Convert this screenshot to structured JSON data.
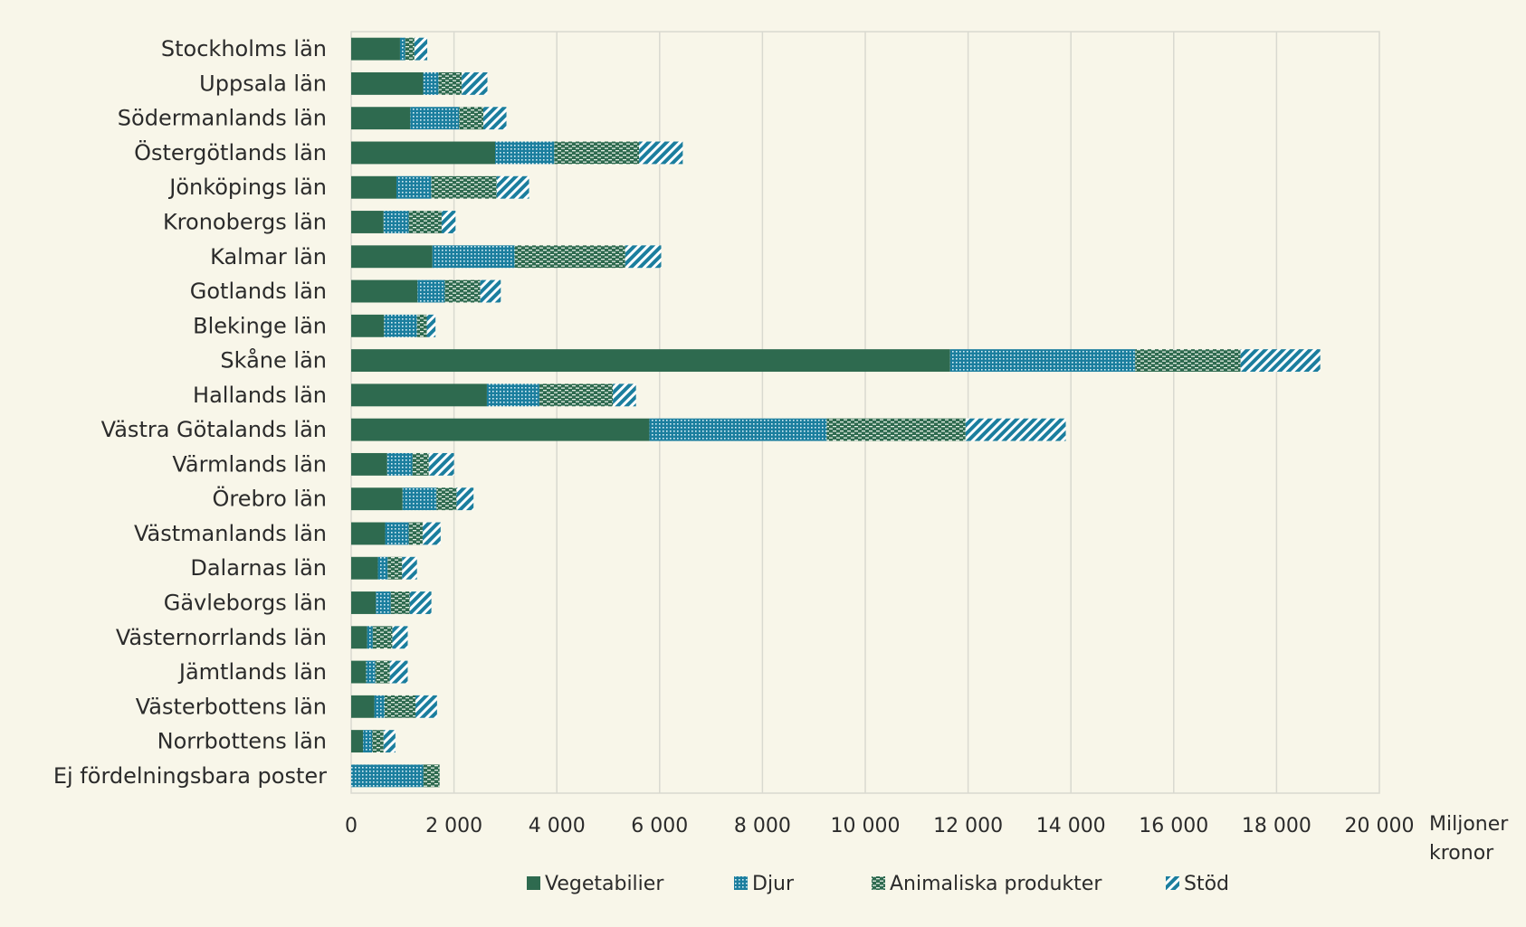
{
  "chart_data": {
    "type": "bar",
    "orientation": "horizontal",
    "stacked": true,
    "categories": [
      "Stockholms län",
      "Uppsala län",
      "Södermanlands län",
      "Östergötlands län",
      "Jönköpings län",
      "Kronobergs län",
      "Kalmar län",
      "Gotlands län",
      "Blekinge län",
      "Skåne län",
      "Hallands län",
      "Västra Götalands län",
      "Värmlands län",
      "Örebro län",
      "Västmanlands län",
      "Dalarnas län",
      "Gävleborgs län",
      "Västernorrlands län",
      "Jämtlands län",
      "Västerbottens län",
      "Norrbottens län",
      "Ej fördelningsbara poster"
    ],
    "series": [
      {
        "name": "Vegetabilier",
        "pattern": "solid",
        "color": "#2e6a4f",
        "values": [
          950,
          1400,
          1150,
          2800,
          880,
          630,
          1580,
          1290,
          640,
          11650,
          2640,
          5800,
          700,
          1000,
          660,
          520,
          480,
          310,
          290,
          450,
          230,
          0
        ]
      },
      {
        "name": "Djur",
        "pattern": "dots",
        "color": "#1b7e9e",
        "values": [
          100,
          300,
          950,
          1150,
          680,
          490,
          1600,
          530,
          640,
          3600,
          1020,
          3450,
          490,
          660,
          460,
          190,
          290,
          110,
          180,
          200,
          180,
          1400
        ]
      },
      {
        "name": "Animaliska produkter",
        "pattern": "dashes",
        "color": "#2e6a4f",
        "values": [
          180,
          450,
          470,
          1650,
          1270,
          640,
          2150,
          690,
          190,
          2050,
          1430,
          2700,
          320,
          390,
          270,
          280,
          370,
          380,
          280,
          600,
          220,
          320
        ]
      },
      {
        "name": "Stöd",
        "pattern": "diagonal",
        "color": "#1b7e9e",
        "values": [
          250,
          500,
          450,
          850,
          630,
          270,
          700,
          400,
          170,
          1550,
          450,
          1950,
          490,
          330,
          350,
          290,
          420,
          300,
          350,
          420,
          230,
          0
        ]
      }
    ],
    "xlim": [
      0,
      20000
    ],
    "xticks": [
      "0",
      "2 000",
      "4 000",
      "6 000",
      "8 000",
      "10 000",
      "12 000",
      "14 000",
      "16 000",
      "18 000",
      "20 000"
    ],
    "xunit_lines": [
      "Miljoner",
      "kronor"
    ],
    "grid": "vertical",
    "legend_position": "bottom"
  }
}
